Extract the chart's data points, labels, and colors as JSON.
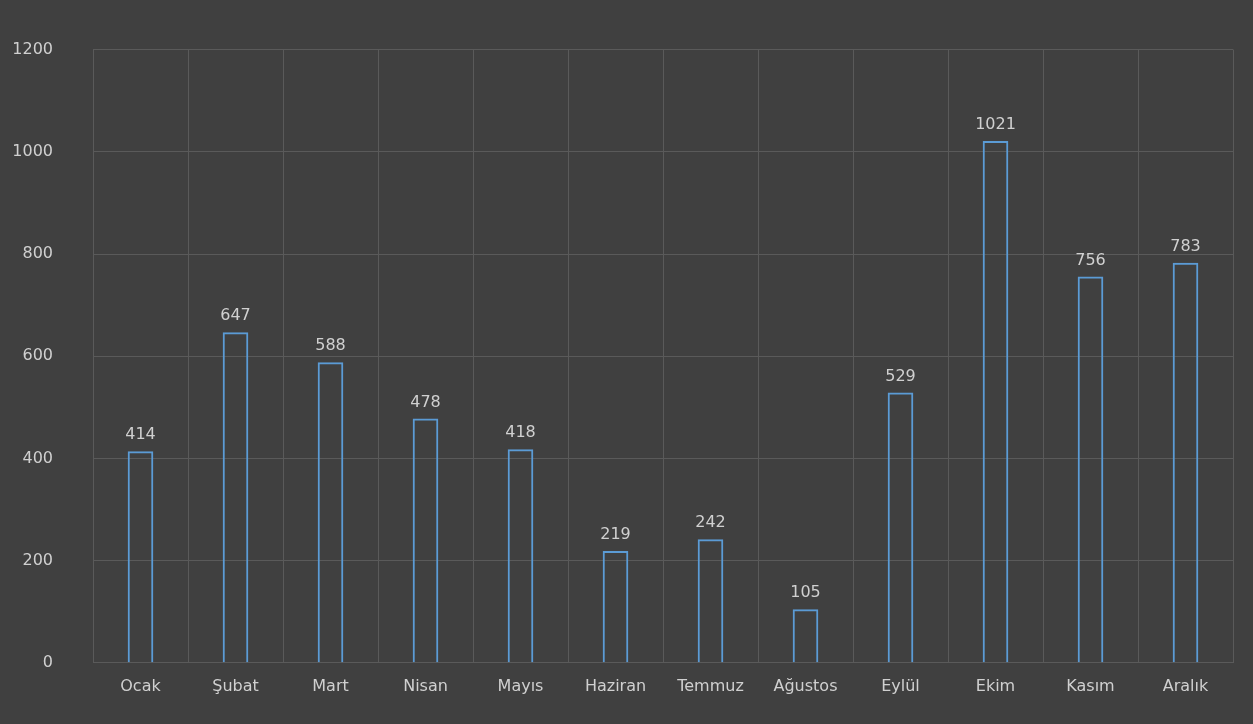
{
  "chart_data": {
    "type": "bar",
    "categories": [
      "Ocak",
      "Şubat",
      "Mart",
      "Nisan",
      "Mayıs",
      "Haziran",
      "Temmuz",
      "Ağustos",
      "Eylül",
      "Ekim",
      "Kasım",
      "Aralık"
    ],
    "values": [
      414,
      647,
      588,
      478,
      418,
      219,
      242,
      105,
      529,
      1021,
      756,
      783
    ],
    "color": "#5b9bd5",
    "ylim": [
      0,
      1200
    ],
    "yticks": [
      0,
      200,
      400,
      600,
      800,
      1000,
      1200
    ],
    "grid": true,
    "data_labels": true
  }
}
